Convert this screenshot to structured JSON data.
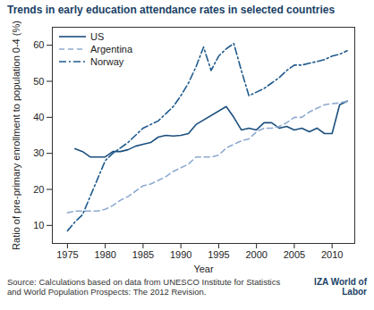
{
  "chart_data": {
    "type": "line",
    "title": "Trends in early education attendance rates in selected countries",
    "x_label": "Year",
    "y_label": "Ratio of pre-primary enrollment to population 0-4 (%)",
    "caption": "Source: Calculations based on data from UNESCO Institute for Statistics and World Population Prospects: The 2012 Revision.",
    "annotations": [
      "IZA World of Labor"
    ],
    "xlim": [
      1973,
      2013
    ],
    "xticks": [
      1975,
      1980,
      1985,
      1990,
      1995,
      2000,
      2005,
      2010
    ],
    "ylim": [
      5,
      65
    ],
    "yticks": [
      10,
      20,
      30,
      40,
      50,
      60
    ],
    "grid": false,
    "legend": "upper left",
    "series": [
      {
        "name": "US",
        "color": "#1b4f7e",
        "line_style": "solid",
        "x": [
          1976,
          1977,
          1978,
          1979,
          1980,
          1981,
          1982,
          1983,
          1984,
          1985,
          1986,
          1987,
          1988,
          1989,
          1990,
          1991,
          1992,
          1996,
          1997,
          1998,
          1999,
          2000,
          2001,
          2002,
          2003,
          2004,
          2005,
          2006,
          2007,
          2008,
          2009,
          2010,
          2011,
          2012
        ],
        "values": [
          31.3,
          30.5,
          29,
          29,
          29,
          30.5,
          30.5,
          31,
          32,
          32.5,
          33,
          34.5,
          35,
          34.8,
          35,
          35.5,
          38,
          43,
          40,
          36.5,
          37,
          36.5,
          38.5,
          38.5,
          37,
          37.5,
          36.5,
          37,
          36,
          37,
          35.5,
          35.5,
          43.5,
          44.5
        ]
      },
      {
        "name": "Argentina",
        "color": "#8eaad0",
        "line_style": "dashed",
        "x": [
          1975,
          1976,
          1977,
          1978,
          1979,
          1980,
          1981,
          1982,
          1983,
          1984,
          1985,
          1986,
          1987,
          1988,
          1989,
          1990,
          1991,
          1992,
          1993,
          1994,
          1995,
          1996,
          1997,
          1998,
          1999,
          2000,
          2001,
          2002,
          2003,
          2004,
          2005,
          2006,
          2007,
          2008,
          2009,
          2010,
          2011,
          2012
        ],
        "values": [
          13.5,
          14,
          14,
          14,
          14,
          14.5,
          15.5,
          17,
          18,
          19.5,
          21,
          21.5,
          22.5,
          23.5,
          25,
          26,
          27,
          29,
          29,
          29,
          29.5,
          31.5,
          32.5,
          33.5,
          34,
          36,
          37,
          37,
          37.5,
          38.5,
          40,
          40,
          41.5,
          42.5,
          43.5,
          43.8,
          44,
          44.5
        ]
      },
      {
        "name": "Norway",
        "color": "#1f5a8c",
        "line_style": "dashdot",
        "x": [
          1975,
          1976,
          1977,
          1978,
          1979,
          1980,
          1981,
          1982,
          1983,
          1984,
          1985,
          1986,
          1987,
          1988,
          1989,
          1990,
          1991,
          1992,
          1993,
          1994,
          1995,
          1996,
          1997,
          1998,
          1999,
          2000,
          2001,
          2002,
          2003,
          2004,
          2005,
          2006,
          2007,
          2008,
          2009,
          2010,
          2011,
          2012
        ],
        "values": [
          8.5,
          11,
          13,
          18,
          23,
          28,
          30,
          31.5,
          33,
          35,
          37,
          38,
          39,
          41,
          43,
          46,
          49.5,
          54,
          59.5,
          53,
          57,
          59,
          60.5,
          53,
          46,
          47,
          48,
          49.5,
          51,
          53,
          54.5,
          54.5,
          55,
          55.5,
          56,
          57,
          57.5,
          58.5
        ]
      }
    ]
  }
}
